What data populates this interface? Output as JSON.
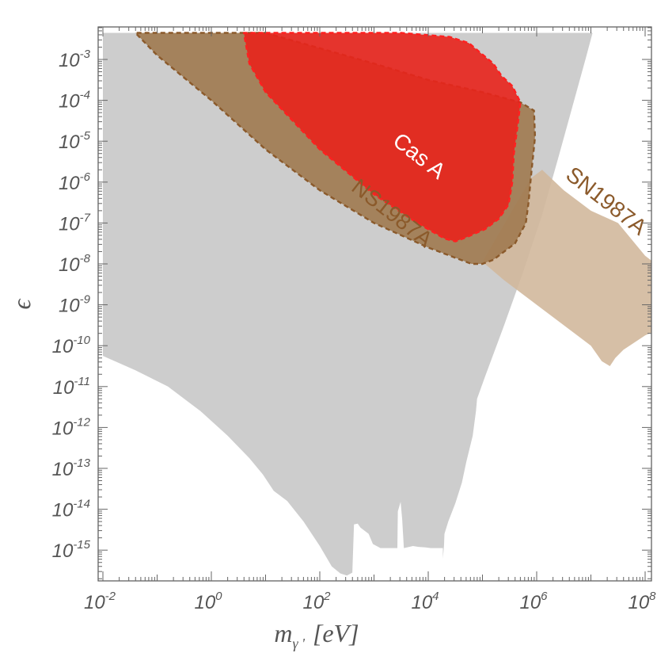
{
  "chart_data": {
    "type": "area",
    "xlabel": {
      "base": "m",
      "sub": "γ '",
      "unit": "[eV]"
    },
    "ylabel": "ϵ",
    "x_scale": "log",
    "y_scale": "log",
    "xlim_log10": [
      -2,
      9.1
    ],
    "ylim_log10": [
      -15.75,
      -2.35
    ],
    "x_ticks": [
      {
        "base": "10",
        "exp": "-2",
        "log10": -2
      },
      {
        "base": "10",
        "exp": "0",
        "log10": 0
      },
      {
        "base": "10",
        "exp": "2",
        "log10": 2
      },
      {
        "base": "10",
        "exp": "4",
        "log10": 4
      },
      {
        "base": "10",
        "exp": "6",
        "log10": 6
      },
      {
        "base": "10",
        "exp": "8",
        "log10": 8
      }
    ],
    "y_ticks": [
      {
        "base": "10",
        "exp": "-3",
        "log10": -3
      },
      {
        "base": "10",
        "exp": "-4",
        "log10": -4
      },
      {
        "base": "10",
        "exp": "-5",
        "log10": -5
      },
      {
        "base": "10",
        "exp": "-6",
        "log10": -6
      },
      {
        "base": "10",
        "exp": "-7",
        "log10": -7
      },
      {
        "base": "10",
        "exp": "-8",
        "log10": -8
      },
      {
        "base": "10",
        "exp": "-9",
        "log10": -9
      },
      {
        "base": "10",
        "exp": "-10",
        "log10": -10
      },
      {
        "base": "10",
        "exp": "-11",
        "log10": -11
      },
      {
        "base": "10",
        "exp": "-12",
        "log10": -12
      },
      {
        "base": "10",
        "exp": "-13",
        "log10": -13
      },
      {
        "base": "10",
        "exp": "-14",
        "log10": -14
      },
      {
        "base": "10",
        "exp": "-15",
        "log10": -15
      }
    ],
    "grid": false,
    "series": [
      {
        "label": "",
        "color": "#c8c8c8",
        "opacity": 0.9,
        "dashed": false,
        "points_log10": [
          [
            -2,
            -2.35
          ],
          [
            7.03,
            -2.35
          ],
          [
            6.9,
            -3.0
          ],
          [
            6.65,
            -4.2
          ],
          [
            6.4,
            -5.4
          ],
          [
            6.1,
            -6.8
          ],
          [
            5.75,
            -8.2
          ],
          [
            5.4,
            -9.5
          ],
          [
            5.05,
            -10.75
          ],
          [
            4.9,
            -11.3
          ],
          [
            4.88,
            -11.6
          ],
          [
            4.82,
            -12.2
          ],
          [
            4.7,
            -12.85
          ],
          [
            4.62,
            -13.35
          ],
          [
            4.5,
            -13.85
          ],
          [
            4.37,
            -14.3
          ],
          [
            4.3,
            -14.6
          ],
          [
            4.29,
            -14.9
          ],
          [
            4.27,
            -15.2
          ],
          [
            4.27,
            -14.95
          ],
          [
            4.05,
            -14.95
          ],
          [
            3.93,
            -14.93
          ],
          [
            3.82,
            -14.92
          ],
          [
            3.72,
            -14.9
          ],
          [
            3.55,
            -14.95
          ],
          [
            3.52,
            -14.25
          ],
          [
            3.49,
            -13.82
          ],
          [
            3.44,
            -14.05
          ],
          [
            3.43,
            -14.95
          ],
          [
            3.12,
            -14.95
          ],
          [
            2.98,
            -14.85
          ],
          [
            2.9,
            -14.6
          ],
          [
            2.75,
            -14.45
          ],
          [
            2.7,
            -14.35
          ],
          [
            2.63,
            -14.37
          ],
          [
            2.6,
            -15.55
          ],
          [
            2.5,
            -15.62
          ],
          [
            2.38,
            -15.57
          ],
          [
            2.22,
            -15.4
          ],
          [
            2.0,
            -14.9
          ],
          [
            1.7,
            -14.3
          ],
          [
            1.4,
            -13.8
          ],
          [
            1.15,
            -13.55
          ],
          [
            0.95,
            -13.15
          ],
          [
            0.7,
            -12.75
          ],
          [
            0.3,
            -12.2
          ],
          [
            -0.2,
            -11.6
          ],
          [
            -0.8,
            -11.0
          ],
          [
            -1.4,
            -10.6
          ],
          [
            -2,
            -10.25
          ]
        ]
      },
      {
        "label": "SN1987A",
        "color": "#d2b89c",
        "opacity": 0.9,
        "dashed": false,
        "points_log10": [
          [
            5.0,
            -7.95
          ],
          [
            5.5,
            -6.8
          ],
          [
            5.9,
            -5.9
          ],
          [
            6.1,
            -5.7
          ],
          [
            6.5,
            -6.2
          ],
          [
            7.0,
            -6.7
          ],
          [
            7.5,
            -7.0
          ],
          [
            8.0,
            -7.8
          ],
          [
            8.3,
            -8.1
          ],
          [
            8.55,
            -8.5
          ],
          [
            8.6,
            -9.0
          ],
          [
            8.6,
            -9.3
          ],
          [
            8.4,
            -9.5
          ],
          [
            8.0,
            -9.75
          ],
          [
            7.6,
            -10.1
          ],
          [
            7.45,
            -10.3
          ],
          [
            7.35,
            -10.5
          ],
          [
            7.2,
            -10.38
          ],
          [
            7.0,
            -10.0
          ],
          [
            6.8,
            -9.8
          ],
          [
            6.4,
            -9.4
          ],
          [
            6.0,
            -9.0
          ],
          [
            5.4,
            -8.4
          ],
          [
            5.0,
            -7.95
          ]
        ]
      },
      {
        "label": "NS1987A",
        "color": "#a07a50",
        "opacity": 0.9,
        "dashed": true,
        "dash_color": "#8b5a2b",
        "points_log10": [
          [
            1.0,
            -2.35
          ],
          [
            3.0,
            -3.1
          ],
          [
            4.0,
            -3.5
          ],
          [
            5.0,
            -3.8
          ],
          [
            5.7,
            -4.05
          ],
          [
            5.95,
            -4.25
          ],
          [
            5.97,
            -4.9
          ],
          [
            5.9,
            -5.8
          ],
          [
            5.85,
            -6.5
          ],
          [
            5.8,
            -7.0
          ],
          [
            5.6,
            -7.5
          ],
          [
            5.2,
            -7.9
          ],
          [
            5.0,
            -8.0
          ],
          [
            4.8,
            -8.0
          ],
          [
            4.0,
            -7.6
          ],
          [
            3.0,
            -7.0
          ],
          [
            2.0,
            -6.2
          ],
          [
            1.0,
            -5.2
          ],
          [
            0.0,
            -4.0
          ],
          [
            -1.0,
            -2.9
          ],
          [
            -1.4,
            -2.35
          ],
          [
            1.0,
            -2.35
          ]
        ]
      },
      {
        "label": "Cas A",
        "color": "#e8241c",
        "opacity": 0.9,
        "dashed": true,
        "dash_color": "#ff2020",
        "points_log10": [
          [
            1.0,
            -2.35
          ],
          [
            3.5,
            -2.35
          ],
          [
            4.4,
            -2.45
          ],
          [
            4.75,
            -2.6
          ],
          [
            5.2,
            -3.1
          ],
          [
            5.35,
            -3.4
          ],
          [
            5.55,
            -3.65
          ],
          [
            5.7,
            -4.05
          ],
          [
            5.65,
            -4.6
          ],
          [
            5.58,
            -5.3
          ],
          [
            5.55,
            -6.0
          ],
          [
            5.48,
            -6.55
          ],
          [
            5.3,
            -6.9
          ],
          [
            5.05,
            -7.15
          ],
          [
            4.7,
            -7.35
          ],
          [
            4.5,
            -7.45
          ],
          [
            4.3,
            -7.38
          ],
          [
            3.8,
            -7.0
          ],
          [
            3.0,
            -6.3
          ],
          [
            2.0,
            -5.2
          ],
          [
            1.0,
            -3.8
          ],
          [
            0.7,
            -3.1
          ],
          [
            0.6,
            -2.35
          ],
          [
            1.0,
            -2.35
          ]
        ]
      }
    ],
    "labels": [
      {
        "text": "Cas A",
        "color": "#ffffff",
        "x_log10": 3.75,
        "y_log10": -5.5,
        "angle": 38
      },
      {
        "text": "NS1987A",
        "color": "#8b5a2b",
        "x_log10": 3.25,
        "y_log10": -6.9,
        "angle": 38
      },
      {
        "text": "SN1987A",
        "color": "#8b5a2b",
        "x_log10": 7.2,
        "y_log10": -6.6,
        "angle": 38
      }
    ]
  }
}
